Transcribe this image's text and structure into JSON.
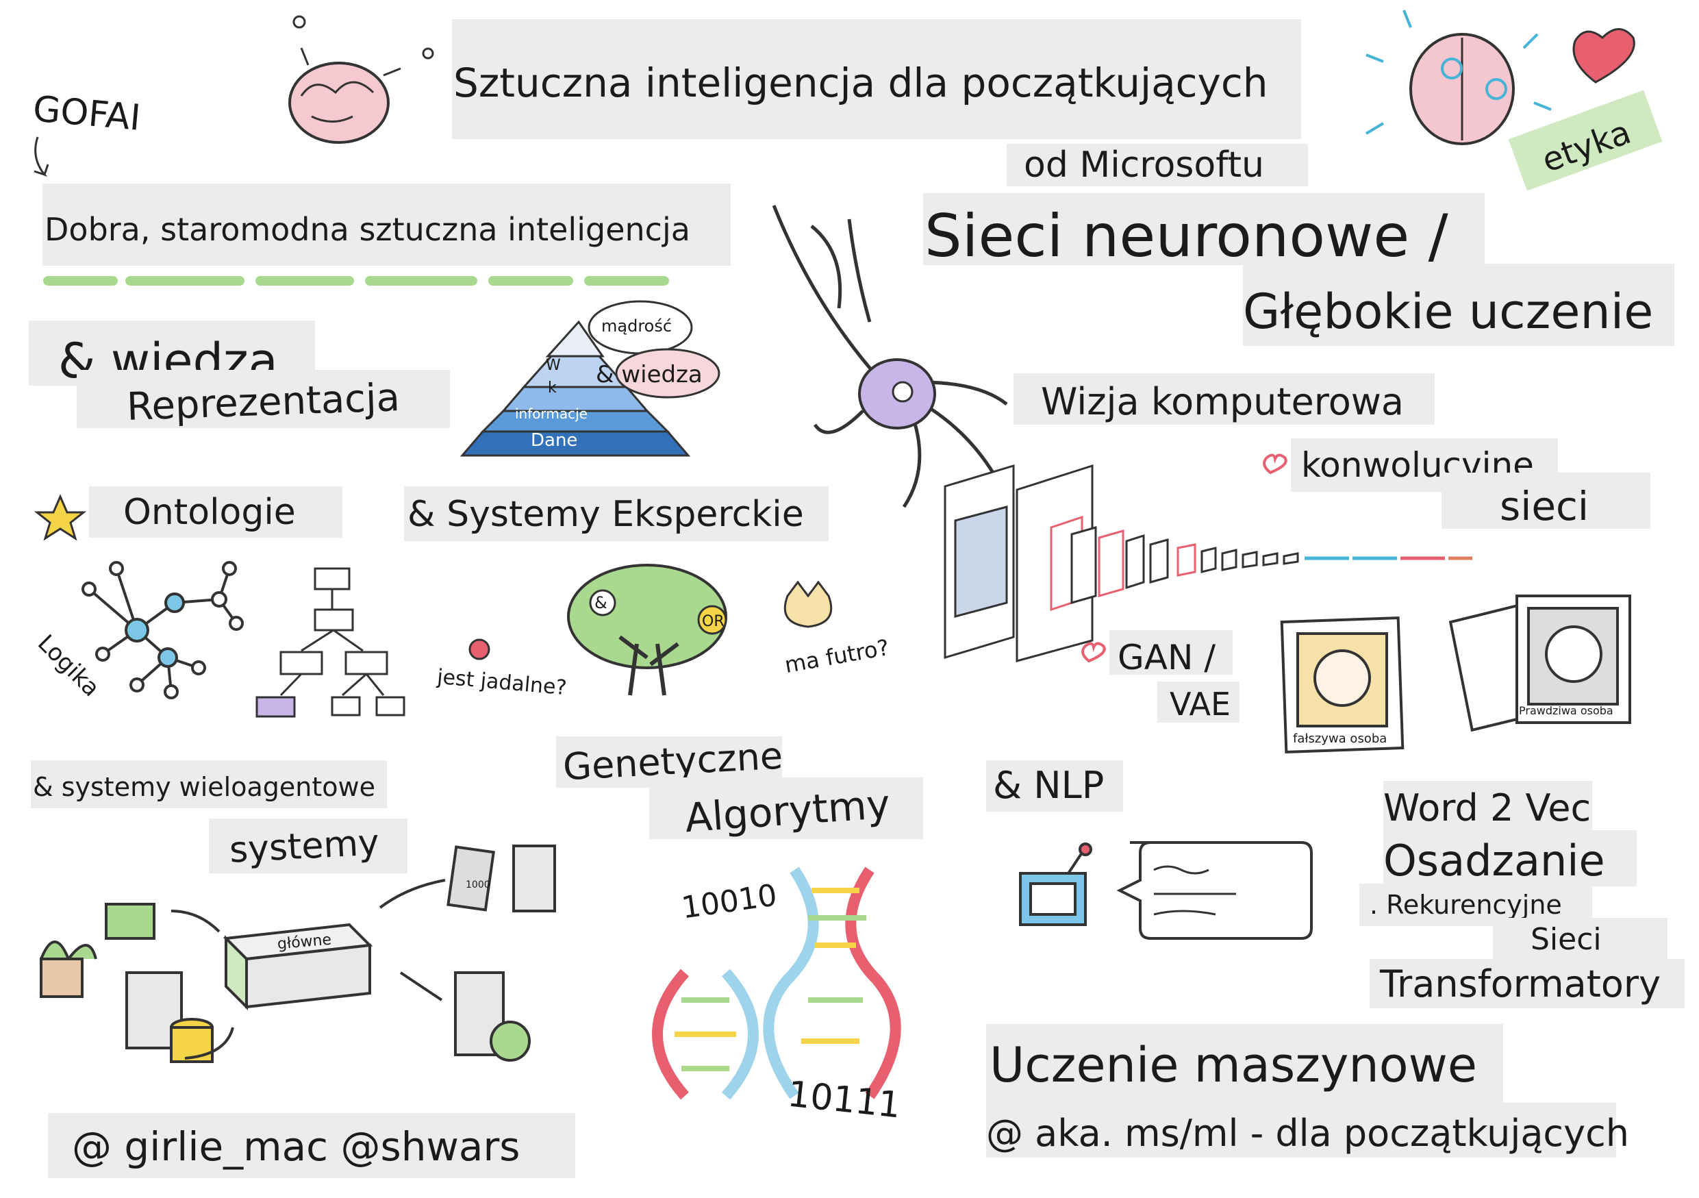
{
  "title": "Sztuczna inteligencja dla początkujących",
  "subtitle": "od Microsoftu",
  "ethics": "etyka",
  "gofai": {
    "abbr": "GOFAI",
    "full": "Dobra, staromodna sztuczna inteligencja"
  },
  "knowledge": {
    "line1": "& wiedza",
    "line2": "Reprezentacja",
    "pyramid": [
      "W",
      "k",
      "informacje",
      "Dane"
    ],
    "bubble1": "mądrość",
    "bubble2": "& wiedza"
  },
  "ontology": {
    "title": "Ontologie",
    "logic": "Logika"
  },
  "expert": {
    "title": "& Systemy Eksperckie",
    "edible": "jest jadalne?",
    "fur": "ma futro?",
    "and": "&",
    "or": "OR"
  },
  "multiagent": {
    "line1": "& systemy wieloagentowe",
    "line2": "systemy",
    "main": "główne",
    "device": "1000"
  },
  "genetic": {
    "line1": "Genetyczne",
    "line2": "Algorytmy",
    "code1": "10010",
    "code2": "10111"
  },
  "handle": "@ girlie_mac @shwars",
  "neural": {
    "line1": "Sieci neuronowe /",
    "line2": "Głębokie uczenie"
  },
  "vision": {
    "title": "Wizja komputerowa",
    "conv1": "konwolucvine",
    "conv2": "sieci",
    "gan": "GAN /",
    "vae": "VAE",
    "fake": "fałszywa osoba",
    "real": "Prawdziwa osoba"
  },
  "nlp": {
    "title": "& NLP",
    "items": [
      "Word 2 Vec",
      "Osadzanie",
      ". Rekurencyjne",
      "Sieci",
      "Transformatory"
    ]
  },
  "ml": {
    "title": "Uczenie maszynowe",
    "link": "@ aka. ms/ml - dla początkujących"
  },
  "colors": {
    "label_bg": "#ececec",
    "green": "#a9d98f",
    "purple": "#c9b6e8",
    "blue": "#46b4d6",
    "pink": "#f08a9a",
    "yellow": "#f5d447"
  }
}
